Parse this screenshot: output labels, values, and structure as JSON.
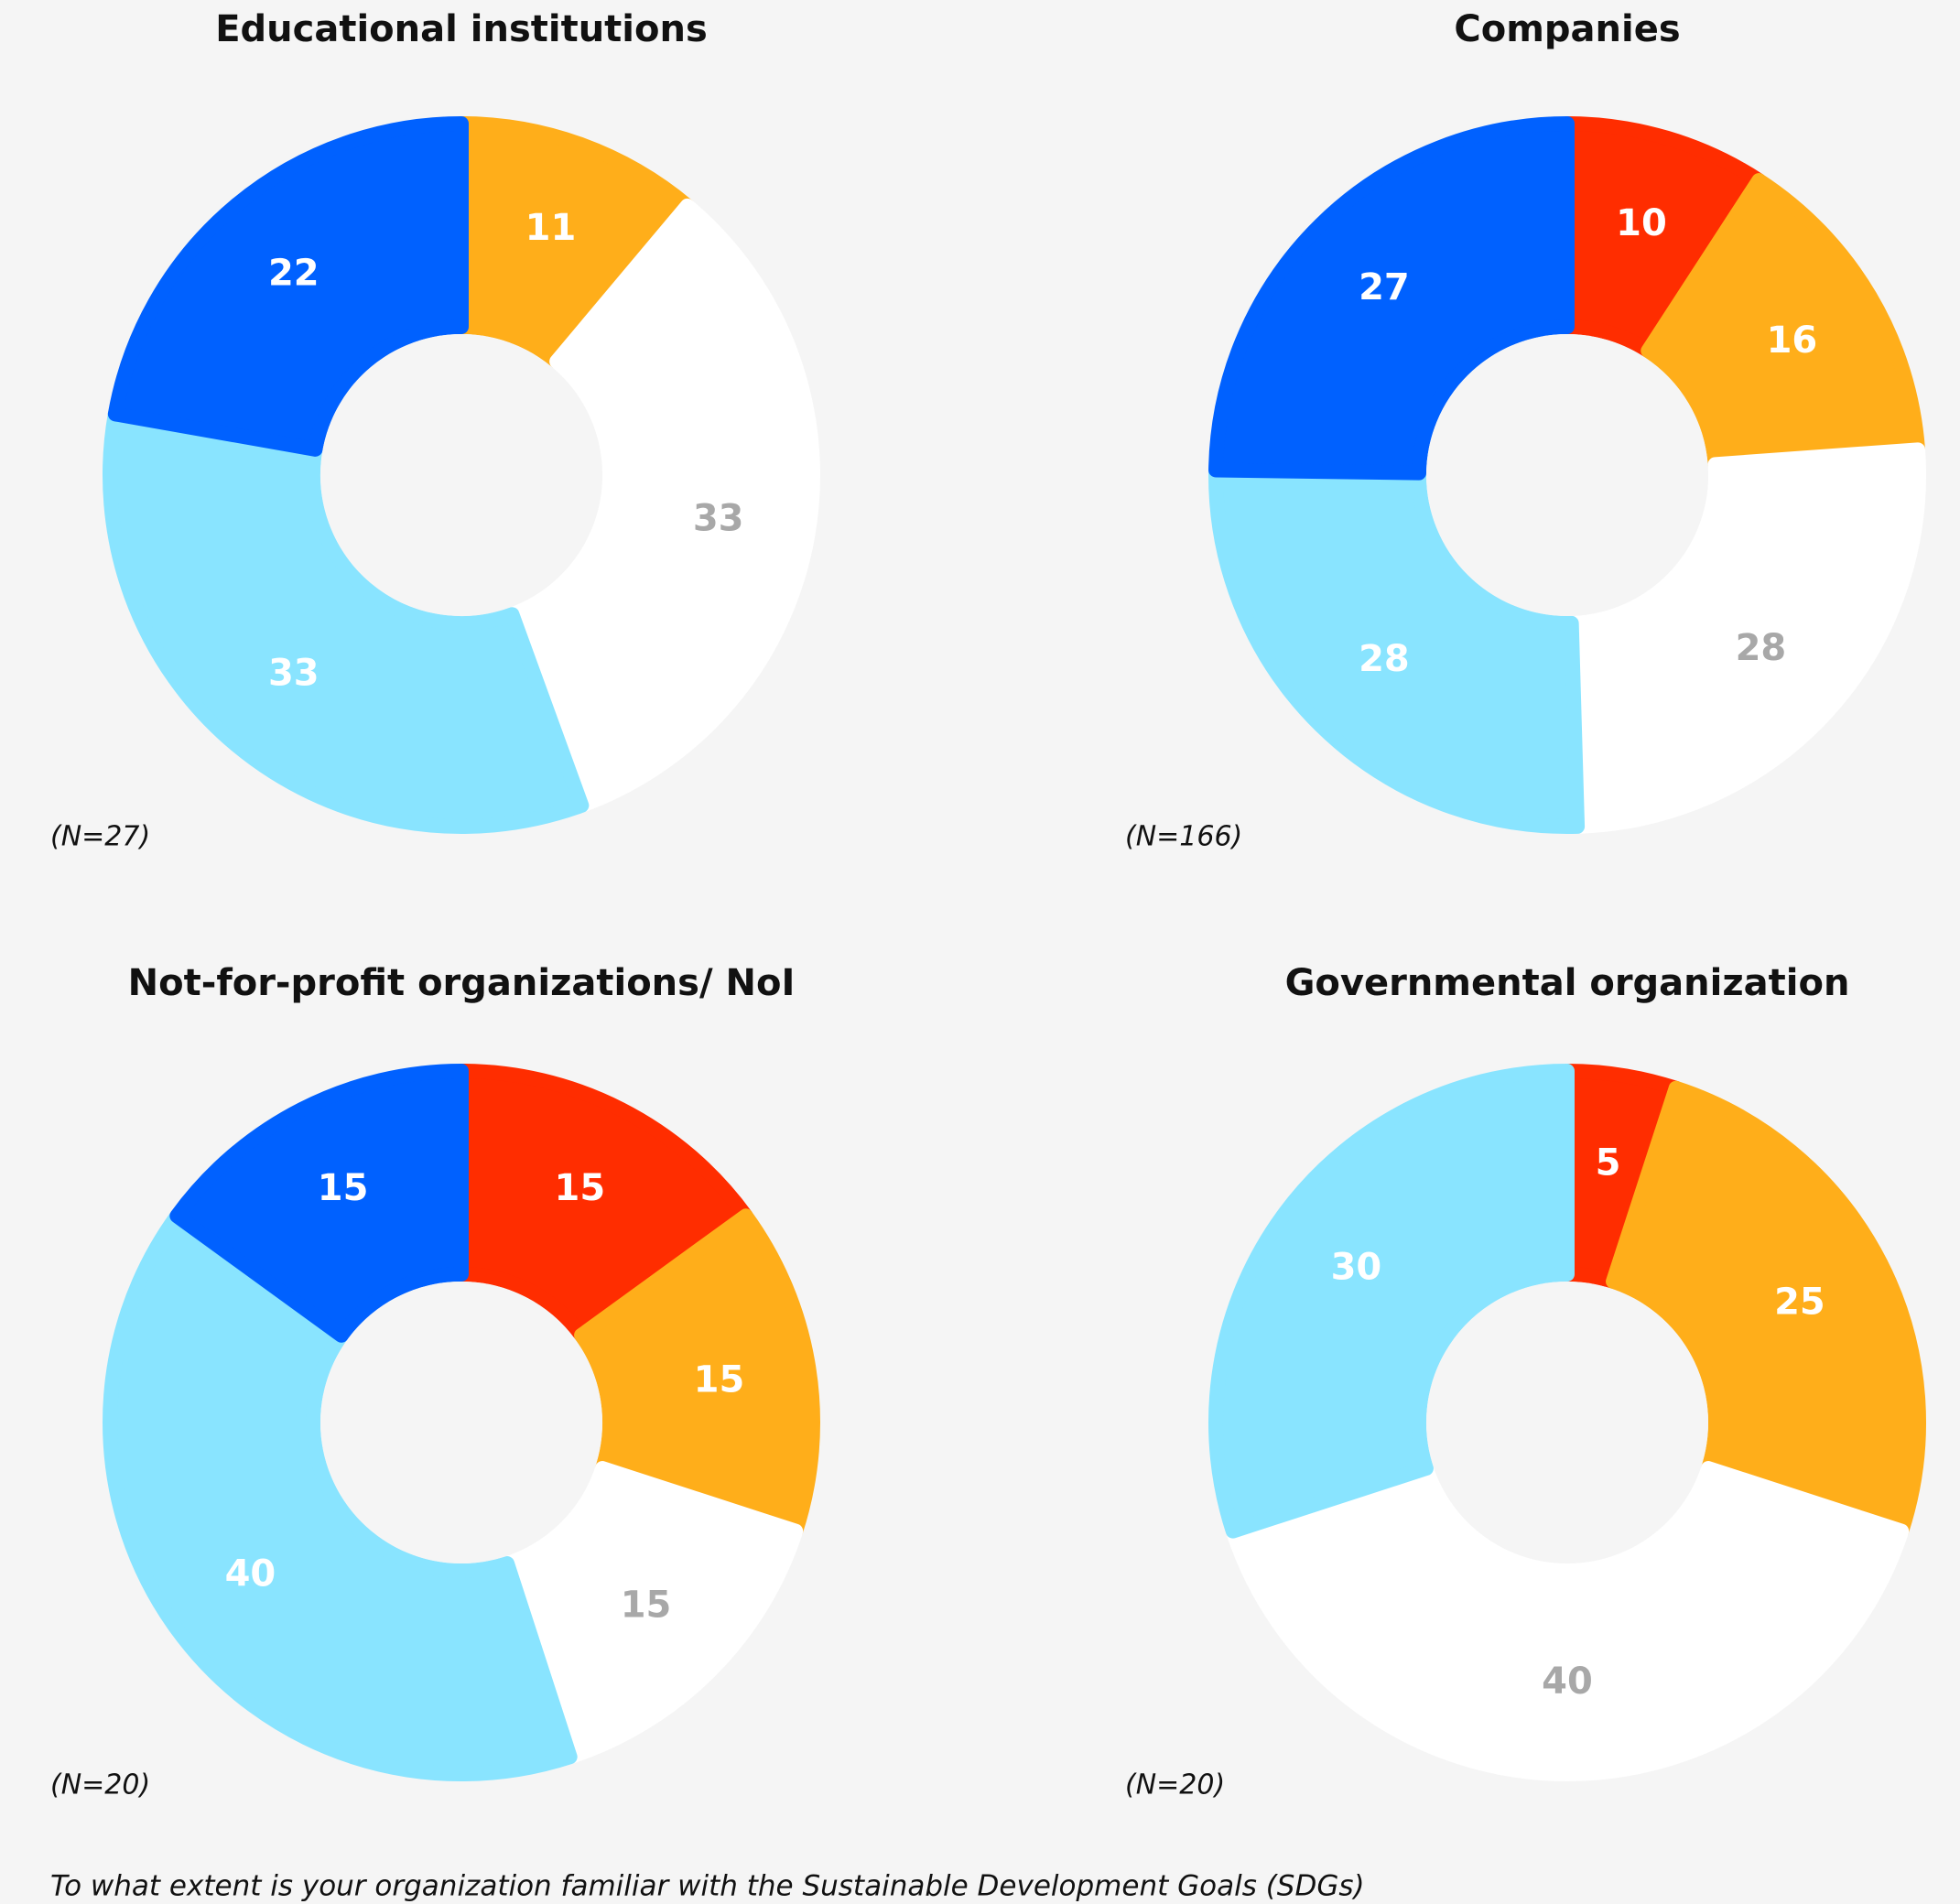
{
  "chart_data": [
    {
      "type": "pie",
      "title": "Educational institutions",
      "note": "(N=27)",
      "values": [
        11,
        33,
        33,
        22
      ],
      "colors": [
        "#ffae1a",
        "#ffffff",
        "#89e4ff",
        "#0061ff"
      ],
      "label_colors": [
        "#ffffff",
        "#a8a8a8",
        "#ffffff",
        "#ffffff"
      ]
    },
    {
      "type": "pie",
      "title": "Companies",
      "note": "(N=166)",
      "values": [
        10,
        16,
        28,
        28,
        27
      ],
      "colors": [
        "#ff2d00",
        "#ffae1a",
        "#ffffff",
        "#89e4ff",
        "#0061ff"
      ],
      "label_colors": [
        "#ffffff",
        "#ffffff",
        "#a8a8a8",
        "#ffffff",
        "#ffffff"
      ]
    },
    {
      "type": "pie",
      "title": "Not-for-profit organizations/ NoI",
      "note": "(N=20)",
      "values": [
        15,
        15,
        15,
        40,
        15
      ],
      "colors": [
        "#ff2d00",
        "#ffae1a",
        "#ffffff",
        "#89e4ff",
        "#0061ff"
      ],
      "label_colors": [
        "#ffffff",
        "#ffffff",
        "#a8a8a8",
        "#ffffff",
        "#ffffff"
      ]
    },
    {
      "type": "pie",
      "title": "Governmental organization",
      "note": "(N=20)",
      "values": [
        5,
        25,
        40,
        30
      ],
      "colors": [
        "#ff2d00",
        "#ffae1a",
        "#ffffff",
        "#89e4ff"
      ],
      "label_colors": [
        "#ffffff",
        "#ffffff",
        "#a8a8a8",
        "#ffffff"
      ]
    }
  ],
  "caption": "To what extent is your organization familiar with the Sustainable Development Goals (SDGs)"
}
